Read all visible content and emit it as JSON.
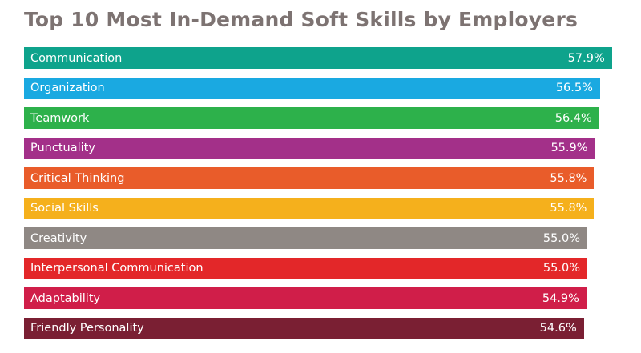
{
  "chart_data": {
    "type": "bar",
    "orientation": "horizontal",
    "title": "Top 10 Most In-Demand Soft Skills by Employers",
    "xlabel": "",
    "ylabel": "",
    "unit": "%",
    "grid": false,
    "categories": [
      "Communication",
      "Organization",
      "Teamwork",
      "Punctuality",
      "Critical Thinking",
      "Social Skills",
      "Creativity",
      "Interpersonal Communication",
      "Adaptability",
      "Friendly Personality"
    ],
    "values": [
      57.9,
      56.5,
      56.4,
      55.9,
      55.8,
      55.8,
      55.0,
      55.0,
      54.9,
      54.6
    ],
    "value_labels": [
      "57.9%",
      "56.5%",
      "56.4%",
      "55.9%",
      "55.8%",
      "55.8%",
      "55.0%",
      "55.0%",
      "54.9%",
      "54.6%"
    ],
    "colors": [
      "#0ea38c",
      "#1aa9e1",
      "#2db14b",
      "#a33089",
      "#e95c2a",
      "#f5b01c",
      "#8f8884",
      "#e32729",
      "#d01e49",
      "#7a1f33"
    ]
  }
}
